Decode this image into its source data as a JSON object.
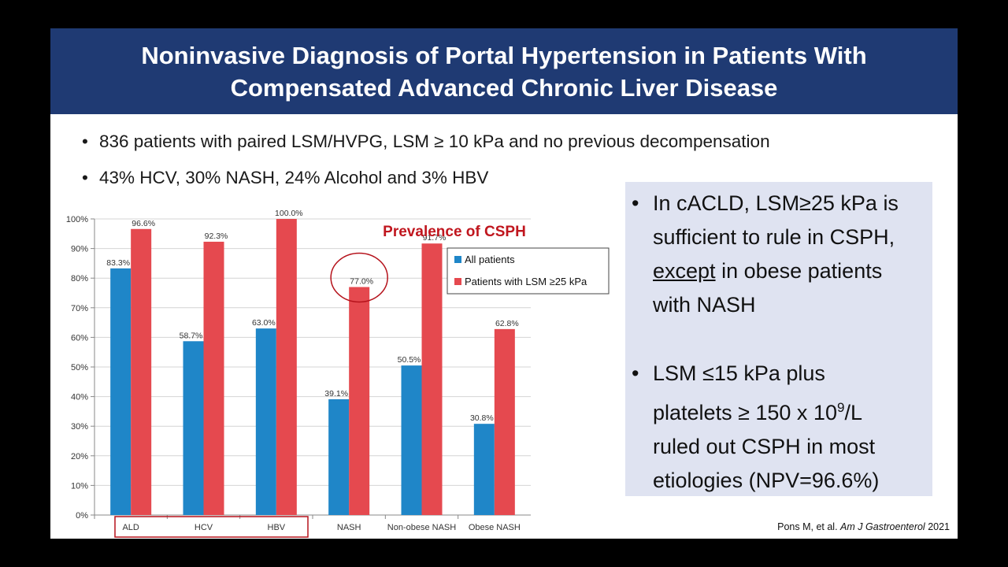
{
  "slide": {
    "title_line1": "Noninvasive Diagnosis of Portal Hypertension in Patients With",
    "title_line2": "Compensated Advanced Chronic Liver Disease",
    "bullets": [
      "836 patients with paired LSM/HVPG, LSM ≥ 10 kPa and no previous decompensation",
      "43% HCV, 30% NASH, 24% Alcohol and 3% HBV"
    ],
    "bullet_marker": "•",
    "side_box": {
      "bullet1": {
        "line1": "In cACLD, LSM≥25 kPa is",
        "line2": "sufficient to rule in CSPH,",
        "line3_underlined": "except",
        "line3_rest": " in obese patients",
        "line4": "with NASH"
      },
      "bullet2": {
        "line1": "LSM ≤15 kPa plus",
        "line2_pre": "platelets ≥ 150 x 10",
        "line2_sup": "9",
        "line2_post": "/L",
        "line3": "ruled out CSPH in most",
        "line4": "etiologies (NPV=96.6%)"
      }
    },
    "citation": {
      "authors": "Pons M, et al. ",
      "journal": "Am J Gastroenterol",
      "year": " 2021"
    }
  },
  "chart_data": {
    "type": "bar",
    "title": "Prevalence of CSPH",
    "categories": [
      "ALD",
      "HCV",
      "HBV",
      "NASH",
      "Non-obese NASH",
      "Obese NASH"
    ],
    "series": [
      {
        "name": "All patients",
        "color": "#1f86c8",
        "values": [
          83.3,
          58.7,
          63.0,
          39.1,
          50.5,
          30.8
        ],
        "labels": [
          "83.3%",
          "58.7%",
          "63.0%",
          "39.1%",
          "50.5%",
          "30.8%"
        ]
      },
      {
        "name": "Patients with LSM ≥25 kPa",
        "color": "#e5494f",
        "values": [
          96.6,
          92.3,
          100.0,
          77.0,
          91.7,
          62.8
        ],
        "labels": [
          "96.6%",
          "92.3%",
          "100.0%",
          "77.0%",
          "91.7%",
          "62.8%"
        ]
      }
    ],
    "yticks": [
      "0%",
      "10%",
      "20%",
      "30%",
      "40%",
      "50%",
      "60%",
      "70%",
      "80%",
      "90%",
      "100%"
    ],
    "ylim": [
      0,
      100
    ],
    "grid": true,
    "legend_position": "top-right",
    "highlight": {
      "boxed_categories": [
        "ALD",
        "HCV",
        "HBV"
      ],
      "circled": "NASH / Patients with LSM ≥25 kPa",
      "color": "#b5121b"
    }
  }
}
